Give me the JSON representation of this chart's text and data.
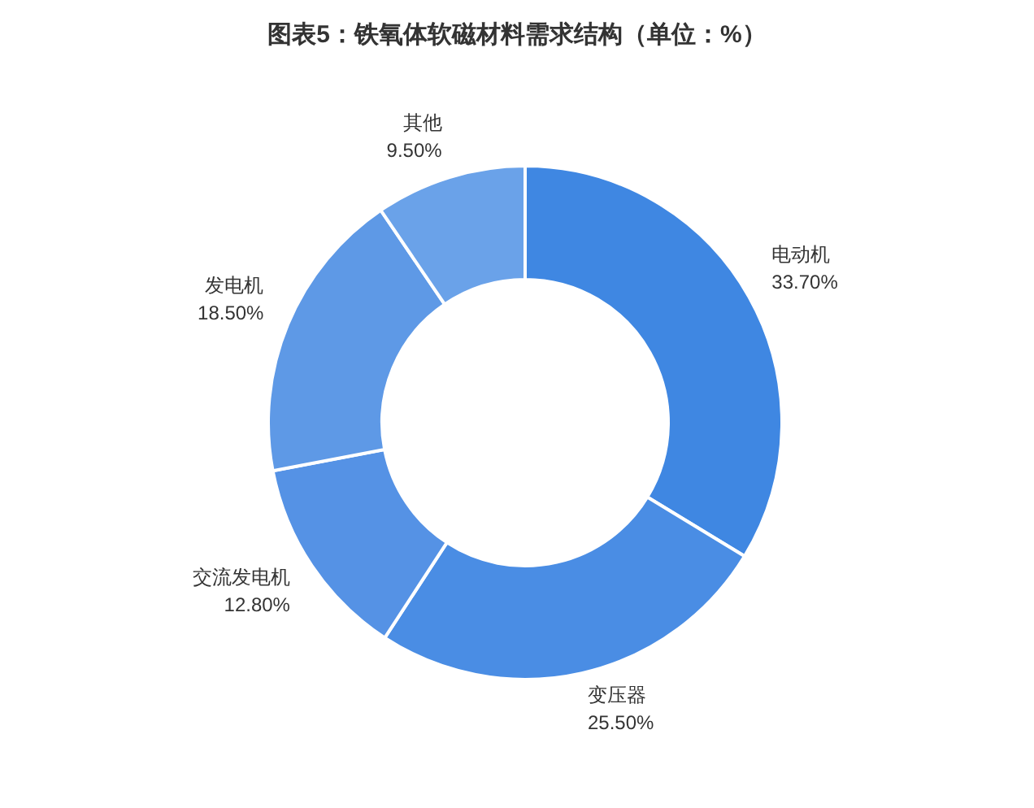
{
  "chart_data": {
    "type": "donut",
    "title": "图表5：铁氧体软磁材料需求结构（单位：%）",
    "categories": [
      "电动机",
      "变压器",
      "交流发电机",
      "发电机",
      "其他"
    ],
    "values": [
      33.7,
      25.5,
      12.8,
      18.5,
      9.5
    ],
    "value_labels": [
      "33.70%",
      "25.50%",
      "12.80%",
      "18.50%",
      "9.50%"
    ],
    "colors": [
      "#3f87e2",
      "#4a8de4",
      "#5592e5",
      "#5e99e6",
      "#6aa2e9"
    ],
    "legend": false
  }
}
